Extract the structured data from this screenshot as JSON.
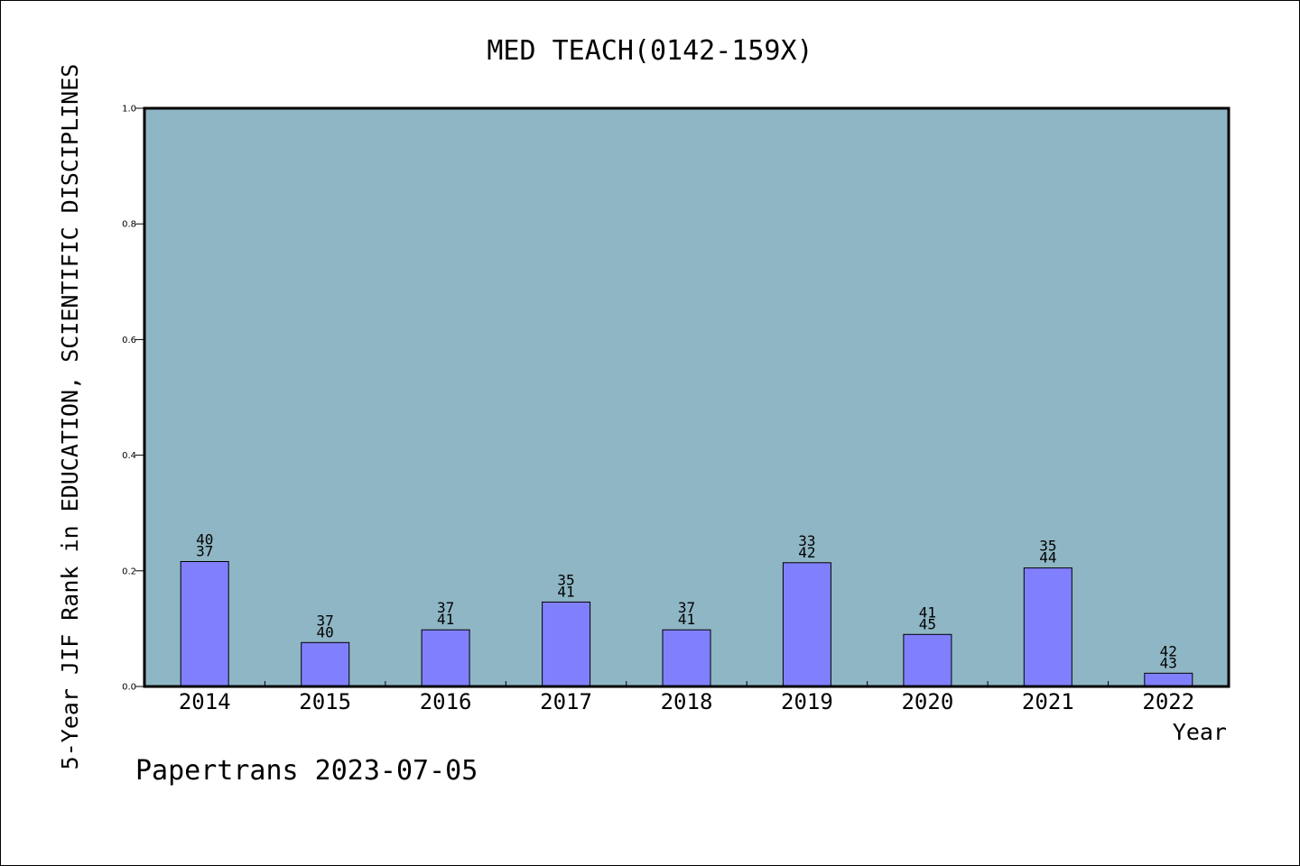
{
  "chart_data": {
    "type": "bar",
    "title": "MED TEACH(0142-159X)",
    "xlabel": "Year",
    "ylabel": "5-Year JIF Rank in EDUCATION, SCIENTIFIC DISCIPLINES",
    "ylim": [
      0,
      1.0
    ],
    "yticks": [
      "0.0",
      "0.2",
      "0.4",
      "0.6",
      "0.8",
      "1.0"
    ],
    "ytick_values": [
      0,
      0.2,
      0.4,
      0.6,
      0.8,
      1.0
    ],
    "categories": [
      "2014",
      "2015",
      "2016",
      "2017",
      "2018",
      "2019",
      "2020",
      "2021",
      "2022"
    ],
    "values": [
      0.216,
      0.076,
      0.098,
      0.146,
      0.098,
      0.214,
      0.09,
      0.205,
      0.023
    ],
    "labels_top": [
      "40",
      "37",
      "37",
      "35",
      "37",
      "33",
      "41",
      "35",
      "42"
    ],
    "labels_bottom": [
      "37",
      "40",
      "41",
      "41",
      "41",
      "42",
      "45",
      "44",
      "43"
    ],
    "grid": false,
    "plot_background": "#8fb6c4",
    "bar_color": "#8080ff"
  },
  "footer": "Papertrans 2023-07-05"
}
